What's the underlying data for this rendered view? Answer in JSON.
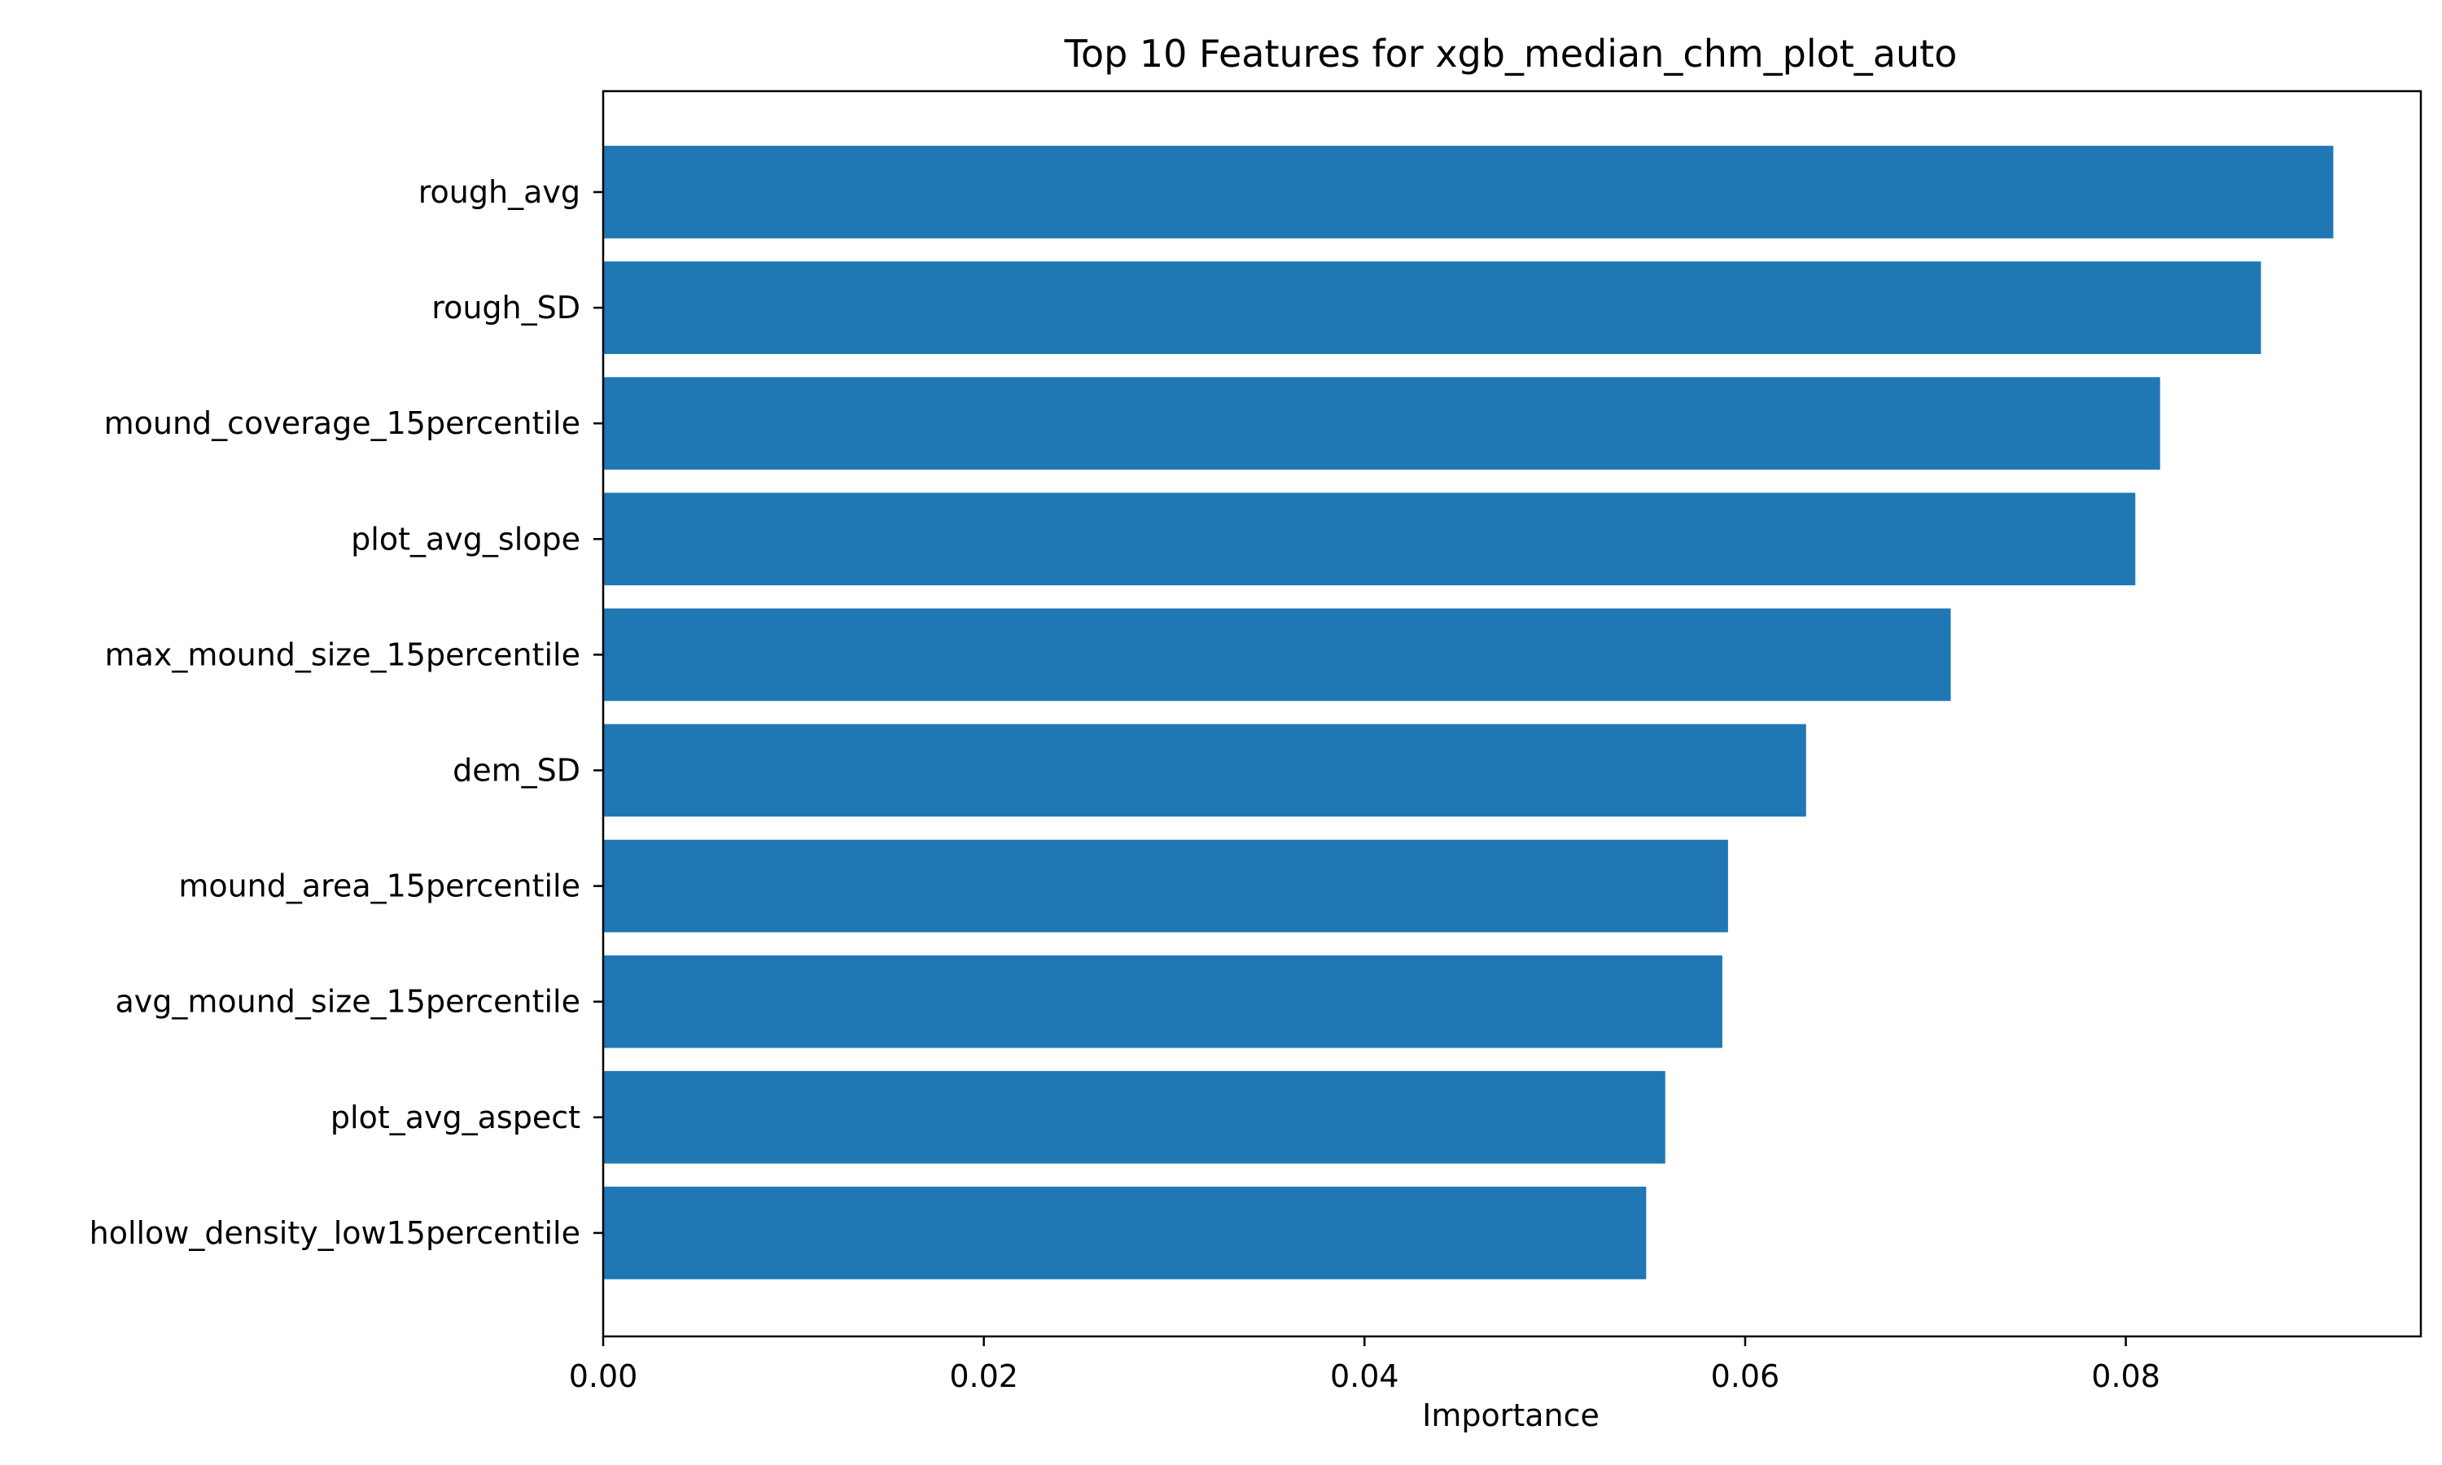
{
  "chart_data": {
    "type": "bar",
    "orientation": "horizontal",
    "title": "Top 10 Features for xgb_median_chm_plot_auto",
    "xlabel": "Importance",
    "ylabel": "",
    "xlim": [
      0,
      0.0955
    ],
    "xticks": [
      0,
      0.02,
      0.04,
      0.06,
      0.08
    ],
    "xtick_labels": [
      "0.00",
      "0.02",
      "0.04",
      "0.06",
      "0.08"
    ],
    "grid": false,
    "bar_color": "#1f77b4",
    "categories": [
      "rough_avg",
      "rough_SD",
      "mound_coverage_15percentile",
      "plot_avg_slope",
      "max_mound_size_15percentile",
      "dem_SD",
      "mound_area_15percentile",
      "avg_mound_size_15percentile",
      "plot_avg_aspect",
      "hollow_density_low15percentile"
    ],
    "values": [
      0.0909,
      0.0871,
      0.0818,
      0.0805,
      0.0708,
      0.0632,
      0.0591,
      0.0588,
      0.0558,
      0.0548
    ]
  }
}
